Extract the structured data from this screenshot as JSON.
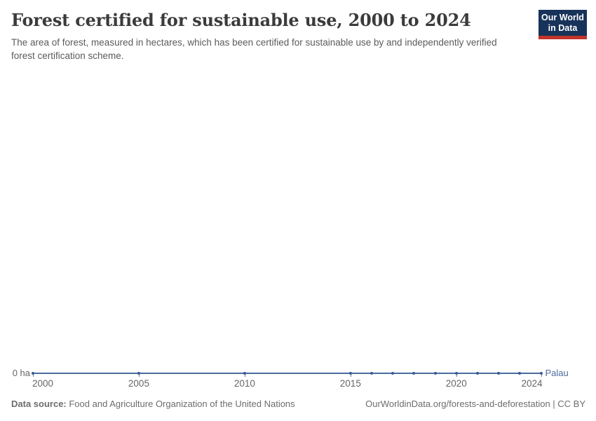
{
  "header": {
    "title": "Forest certified for sustainable use, 2000 to 2024",
    "subtitle": "The area of forest, measured in hectares, which has been certified for sustainable use by and independently verified forest certification scheme.",
    "logo": {
      "line1": "Our World",
      "line2": "in Data",
      "bg_color": "#18335a",
      "stripe_color": "#c3342b"
    }
  },
  "chart_data": {
    "type": "line",
    "title": "Forest certified for sustainable use, 2000 to 2024",
    "unit": "ha",
    "xlim": [
      2000,
      2024
    ],
    "ylim": [
      0,
      0
    ],
    "grid": false,
    "x_ticks": [
      2000,
      2005,
      2010,
      2015,
      2020,
      2024
    ],
    "y_axis_label": "0 ha",
    "entity_label": "Palau",
    "series": [
      {
        "name": "Palau",
        "color": "#4c6a9c",
        "marker_color": "#3a5a96",
        "x": [
          2000,
          2005,
          2010,
          2015,
          2016,
          2017,
          2018,
          2019,
          2020,
          2021,
          2022,
          2023,
          2024
        ],
        "values": [
          0,
          0,
          0,
          0,
          0,
          0,
          0,
          0,
          0,
          0,
          0,
          0,
          0
        ]
      }
    ]
  },
  "footer": {
    "source_label": "Data source:",
    "source_value": " Food and Agriculture Organization of the United Nations",
    "credit": "OurWorldinData.org/forests-and-deforestation | CC BY"
  }
}
